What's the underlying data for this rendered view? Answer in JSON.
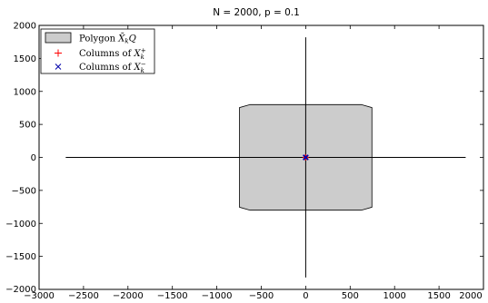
{
  "chart_data": {
    "type": "scatter",
    "title": "N = 2000, p = 0.1",
    "xlim": [
      -3000,
      2000
    ],
    "ylim": [
      -2000,
      2000
    ],
    "x_ticks": [
      -3000,
      -2500,
      -2000,
      -1500,
      -1000,
      -500,
      0,
      500,
      1000,
      1500,
      2000
    ],
    "y_ticks": [
      -2000,
      -1500,
      -1000,
      -500,
      0,
      500,
      1000,
      1500,
      2000
    ],
    "grid": false,
    "legend_position": "top-left",
    "polygon": {
      "name": "Polygon X̄kQ",
      "fill": "#cccccc",
      "x": [
        -625,
        625,
        745,
        745,
        625,
        -625,
        -745,
        -745
      ],
      "y": [
        800,
        800,
        755,
        -755,
        -800,
        -800,
        -755,
        755
      ]
    },
    "axes_lines": [
      {
        "x": [
          -2700,
          1800
        ],
        "y": [
          0,
          0
        ]
      },
      {
        "x": [
          0,
          0
        ],
        "y": [
          -1820,
          1820
        ]
      }
    ],
    "series": [
      {
        "name": "Columns of X+k",
        "marker": "+",
        "color": "#ff0000",
        "points": [
          [
            0,
            0
          ],
          [
            3,
            2
          ],
          [
            -2,
            3
          ],
          [
            2,
            -3
          ],
          [
            -3,
            -2
          ]
        ]
      },
      {
        "name": "Columns of X−k",
        "marker": "x",
        "color": "#0000aa",
        "points": [
          [
            0,
            0
          ],
          [
            4,
            1
          ],
          [
            -4,
            -1
          ],
          [
            1,
            4
          ],
          [
            -1,
            -4
          ],
          [
            3,
            -3
          ],
          [
            -3,
            3
          ]
        ]
      }
    ]
  }
}
